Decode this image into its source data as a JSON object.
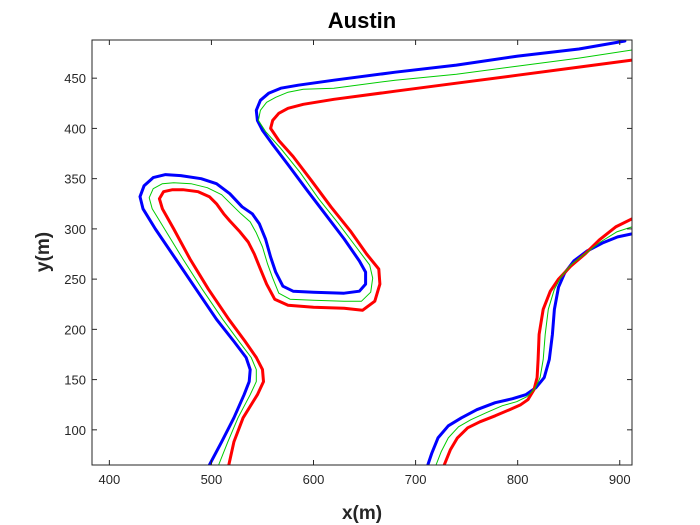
{
  "chart_data": {
    "type": "line",
    "title": "Austin",
    "xlabel": "x(m)",
    "ylabel": "y(m)",
    "xlim": [
      383,
      912
    ],
    "ylim": [
      65,
      488
    ],
    "xticks": [
      400,
      500,
      600,
      700,
      800,
      900
    ],
    "yticks": [
      100,
      150,
      200,
      250,
      300,
      350,
      400,
      450
    ],
    "grid": false,
    "series": [
      {
        "color": "#0000ff",
        "width": 3,
        "segments": [
          [
            [
              498,
              65
            ],
            [
              510,
              88
            ],
            [
              522,
              112
            ],
            [
              532,
              135
            ],
            [
              537,
              148
            ],
            [
              538,
              160
            ],
            [
              534,
              172
            ],
            [
              522,
              188
            ],
            [
              505,
              210
            ],
            [
              485,
              240
            ],
            [
              465,
              270
            ],
            [
              445,
              300
            ],
            [
              433,
              320
            ],
            [
              430,
              332
            ],
            [
              434,
              343
            ],
            [
              443,
              351
            ],
            [
              455,
              354
            ],
            [
              470,
              353
            ],
            [
              490,
              350
            ],
            [
              505,
              345
            ],
            [
              518,
              335
            ],
            [
              530,
              322
            ],
            [
              540,
              315
            ],
            [
              547,
              305
            ],
            [
              553,
              290
            ],
            [
              558,
              272
            ],
            [
              563,
              257
            ],
            [
              570,
              243
            ],
            [
              580,
              238
            ],
            [
              600,
              237
            ],
            [
              630,
              236
            ],
            [
              645,
              238
            ],
            [
              651,
              245
            ],
            [
              651,
              257
            ],
            [
              645,
              268
            ],
            [
              630,
              290
            ],
            [
              612,
              314
            ],
            [
              594,
              338
            ],
            [
              575,
              364
            ],
            [
              560,
              384
            ],
            [
              550,
              398
            ],
            [
              545,
              408
            ],
            [
              544,
              418
            ],
            [
              548,
              428
            ],
            [
              556,
              435
            ],
            [
              568,
              440
            ],
            [
              585,
              443
            ],
            [
              620,
              448
            ],
            [
              680,
              456
            ],
            [
              740,
              463
            ],
            [
              800,
              472
            ],
            [
              860,
              479
            ],
            [
              905,
              487
            ]
          ],
          [
            [
              712,
              65
            ],
            [
              716,
              77
            ],
            [
              722,
              92
            ],
            [
              732,
              104
            ],
            [
              745,
              112
            ],
            [
              760,
              120
            ],
            [
              778,
              127
            ],
            [
              795,
              131
            ],
            [
              808,
              135
            ],
            [
              818,
              142
            ],
            [
              826,
              152
            ],
            [
              831,
              170
            ],
            [
              834,
              195
            ],
            [
              836,
              220
            ],
            [
              840,
              242
            ],
            [
              846,
              256
            ],
            [
              855,
              268
            ],
            [
              868,
              278
            ],
            [
              883,
              286
            ],
            [
              898,
              292
            ],
            [
              912,
              295
            ]
          ]
        ]
      },
      {
        "color": "#ff0000",
        "width": 3,
        "segments": [
          [
            [
              517,
              65
            ],
            [
              522,
              88
            ],
            [
              531,
              112
            ],
            [
              545,
              135
            ],
            [
              551,
              148
            ],
            [
              550,
              160
            ],
            [
              544,
              172
            ],
            [
              533,
              188
            ],
            [
              517,
              210
            ],
            [
              497,
              240
            ],
            [
              479,
              270
            ],
            [
              463,
              300
            ],
            [
              452,
              320
            ],
            [
              449,
              330
            ],
            [
              453,
              337
            ],
            [
              462,
              339
            ],
            [
              472,
              339
            ],
            [
              487,
              337
            ],
            [
              498,
              332
            ],
            [
              505,
              325
            ],
            [
              512,
              315
            ],
            [
              518,
              308
            ],
            [
              528,
              297
            ],
            [
              536,
              287
            ],
            [
              542,
              275
            ],
            [
              548,
              260
            ],
            [
              554,
              245
            ],
            [
              562,
              230
            ],
            [
              575,
              224
            ],
            [
              600,
              222
            ],
            [
              630,
              221
            ],
            [
              648,
              219
            ],
            [
              660,
              228
            ],
            [
              665,
              245
            ],
            [
              664,
              260
            ],
            [
              652,
              275
            ],
            [
              636,
              298
            ],
            [
              617,
              322
            ],
            [
              598,
              348
            ],
            [
              580,
              372
            ],
            [
              566,
              388
            ],
            [
              558,
              400
            ],
            [
              560,
              408
            ],
            [
              566,
              415
            ],
            [
              575,
              420
            ],
            [
              590,
              424
            ],
            [
              620,
              429
            ],
            [
              680,
              437
            ],
            [
              740,
              445
            ],
            [
              800,
              453
            ],
            [
              860,
              461
            ],
            [
              912,
              468
            ]
          ],
          [
            [
              728,
              65
            ],
            [
              734,
              80
            ],
            [
              741,
              92
            ],
            [
              751,
              102
            ],
            [
              763,
              108
            ],
            [
              778,
              114
            ],
            [
              792,
              120
            ],
            [
              803,
              125
            ],
            [
              810,
              130
            ],
            [
              816,
              140
            ],
            [
              819,
              152
            ],
            [
              820,
              170
            ],
            [
              821,
              195
            ],
            [
              825,
              220
            ],
            [
              832,
              238
            ],
            [
              840,
              250
            ],
            [
              852,
              263
            ],
            [
              866,
              275
            ],
            [
              880,
              289
            ],
            [
              896,
              302
            ],
            [
              912,
              310
            ]
          ]
        ]
      },
      {
        "color": "#00cc00",
        "width": 1,
        "segments": [
          [
            [
              507,
              65
            ],
            [
              516,
              88
            ],
            [
              526,
              112
            ],
            [
              538,
              135
            ],
            [
              544,
              148
            ],
            [
              544,
              160
            ],
            [
              539,
              172
            ],
            [
              527,
              188
            ],
            [
              511,
              210
            ],
            [
              491,
              240
            ],
            [
              472,
              270
            ],
            [
              454,
              300
            ],
            [
              442,
              320
            ],
            [
              439,
              331
            ],
            [
              443,
              340
            ],
            [
              452,
              345
            ],
            [
              463,
              346
            ],
            [
              480,
              345
            ],
            [
              496,
              341
            ],
            [
              510,
              334
            ],
            [
              520,
              324
            ],
            [
              529,
              315
            ],
            [
              538,
              307
            ],
            [
              544,
              296
            ],
            [
              550,
              282
            ],
            [
              555,
              265
            ],
            [
              560,
              251
            ],
            [
              566,
              236
            ],
            [
              577,
              230
            ],
            [
              600,
              229
            ],
            [
              630,
              228
            ],
            [
              647,
              228
            ],
            [
              656,
              237
            ],
            [
              658,
              251
            ],
            [
              655,
              264
            ],
            [
              641,
              283
            ],
            [
              624,
              306
            ],
            [
              605,
              330
            ],
            [
              587,
              356
            ],
            [
              568,
              380
            ],
            [
              553,
              397
            ],
            [
              546,
              408
            ],
            [
              548,
              418
            ],
            [
              554,
              426
            ],
            [
              563,
              431
            ],
            [
              575,
              436
            ],
            [
              590,
              439
            ],
            [
              620,
              440
            ],
            [
              680,
              448
            ],
            [
              740,
              454
            ],
            [
              800,
              462
            ],
            [
              860,
              470
            ],
            [
              912,
              478
            ]
          ],
          [
            [
              720,
              65
            ],
            [
              725,
              78
            ],
            [
              732,
              92
            ],
            [
              742,
              103
            ],
            [
              754,
              110
            ],
            [
              769,
              117
            ],
            [
              785,
              124
            ],
            [
              799,
              128
            ],
            [
              809,
              133
            ],
            [
              817,
              141
            ],
            [
              822,
              152
            ],
            [
              825,
              170
            ],
            [
              827,
              195
            ],
            [
              830,
              220
            ],
            [
              836,
              240
            ],
            [
              843,
              253
            ],
            [
              853,
              265
            ],
            [
              867,
              276
            ],
            [
              881,
              287
            ],
            [
              897,
              297
            ],
            [
              912,
              302
            ]
          ]
        ]
      }
    ]
  }
}
